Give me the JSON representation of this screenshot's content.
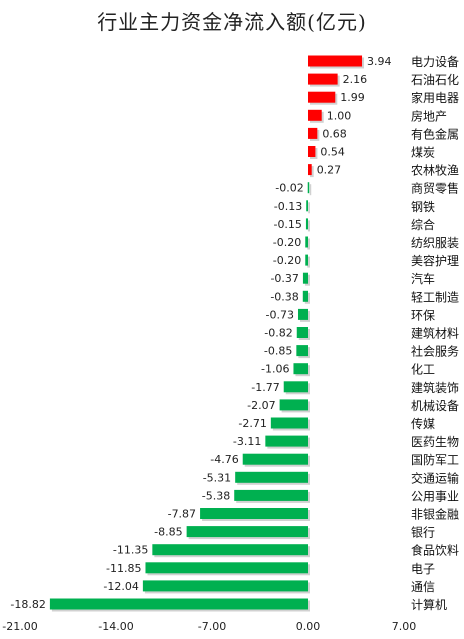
{
  "chart_data": {
    "type": "bar",
    "orientation": "horizontal",
    "title": "行业主力资金净流入额(亿元)",
    "categories": [
      "电力设备",
      "石油石化",
      "家用电器",
      "房地产",
      "有色金属",
      "煤炭",
      "农林牧渔",
      "商贸零售",
      "钢铁",
      "综合",
      "纺织服装",
      "美容护理",
      "汽车",
      "轻工制造",
      "环保",
      "建筑材料",
      "社会服务",
      "化工",
      "建筑装饰",
      "机械设备",
      "传媒",
      "医药生物",
      "国防军工",
      "交通运输",
      "公用事业",
      "非银金融",
      "银行",
      "食品饮料",
      "电子",
      "通信",
      "计算机"
    ],
    "values": [
      3.94,
      2.16,
      1.99,
      1.0,
      0.68,
      0.54,
      0.27,
      -0.02,
      -0.13,
      -0.15,
      -0.2,
      -0.2,
      -0.37,
      -0.38,
      -0.73,
      -0.82,
      -0.85,
      -1.06,
      -1.77,
      -2.07,
      -2.71,
      -3.11,
      -4.76,
      -5.31,
      -5.38,
      -7.87,
      -8.85,
      -11.35,
      -11.85,
      -12.04,
      -18.82
    ],
    "value_labels": [
      "3.94",
      "2.16",
      "1.99",
      "1.00",
      "0.68",
      "0.54",
      "0.27",
      "-0.02",
      "-0.13",
      "-0.15",
      "-0.20",
      "-0.20",
      "-0.37",
      "-0.38",
      "-0.73",
      "-0.82",
      "-0.85",
      "-1.06",
      "-1.77",
      "-2.07",
      "-2.71",
      "-3.11",
      "-4.76",
      "-5.31",
      "-5.38",
      "-7.87",
      "-8.85",
      "-11.35",
      "-11.85",
      "-12.04",
      "-18.82"
    ],
    "xlim": [
      -21,
      7
    ],
    "x_ticks": [
      -21,
      -14,
      -7,
      0,
      7
    ],
    "x_tick_labels": [
      "-21.00",
      "-14.00",
      "-7.00",
      "0.00",
      "7.00"
    ],
    "positive_color": "#ff0000",
    "negative_color": "#00b050",
    "grid": false,
    "legend": "none"
  }
}
